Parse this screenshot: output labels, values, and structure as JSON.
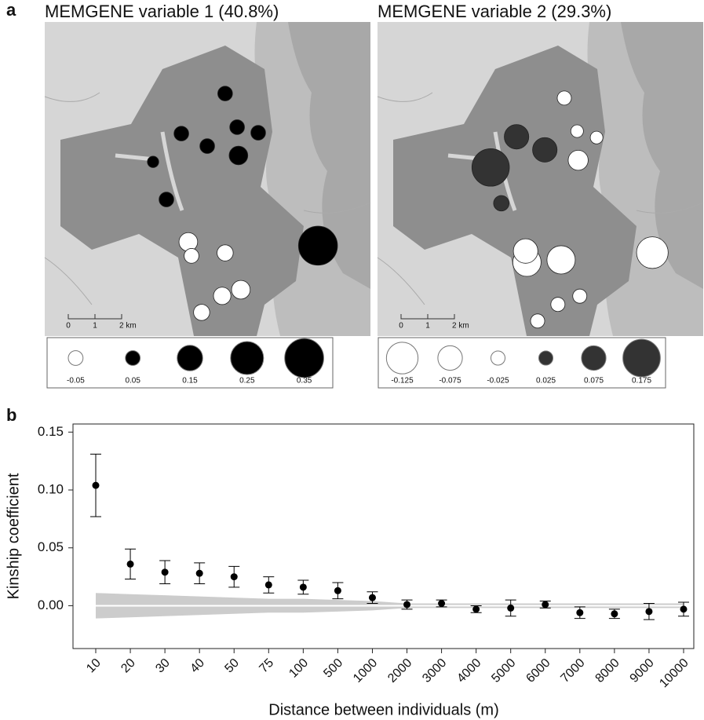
{
  "panel_labels": [
    "a",
    "b"
  ],
  "maps": [
    {
      "title": "MEMGENE variable 1 (40.8%)",
      "scale_labels": [
        "0",
        "1",
        "2 km"
      ],
      "positive_color": "#000000",
      "negative_color": "#ffffff",
      "legend": [
        -0.05,
        0.05,
        0.15,
        0.25,
        0.35
      ],
      "points": [
        {
          "x": 6.76,
          "y": 2.68,
          "value": 0.05
        },
        {
          "x": 5.12,
          "y": 4.18,
          "value": 0.05
        },
        {
          "x": 7.21,
          "y": 3.94,
          "value": 0.05
        },
        {
          "x": 8.0,
          "y": 4.15,
          "value": 0.05
        },
        {
          "x": 6.09,
          "y": 4.65,
          "value": 0.05
        },
        {
          "x": 7.26,
          "y": 5.0,
          "value": 0.08
        },
        {
          "x": 4.06,
          "y": 5.24,
          "value": 0.03
        },
        {
          "x": 4.56,
          "y": 6.65,
          "value": 0.05
        },
        {
          "x": 10.24,
          "y": 8.38,
          "value": 0.35
        },
        {
          "x": 5.38,
          "y": 8.24,
          "value": -0.08
        },
        {
          "x": 5.5,
          "y": 8.76,
          "value": -0.05
        },
        {
          "x": 6.76,
          "y": 8.65,
          "value": -0.06
        },
        {
          "x": 7.35,
          "y": 10.03,
          "value": -0.08
        },
        {
          "x": 6.65,
          "y": 10.26,
          "value": -0.07
        },
        {
          "x": 5.88,
          "y": 10.88,
          "value": -0.06
        }
      ]
    },
    {
      "title": "MEMGENE variable 2 (29.3%)",
      "scale_labels": [
        "0",
        "1",
        "2 km"
      ],
      "positive_color": "#333333",
      "negative_color": "#ffffff",
      "legend": [
        -0.125,
        -0.075,
        -0.025,
        0.025,
        0.075,
        0.175
      ],
      "points": [
        {
          "x": 4.24,
          "y": 5.45,
          "value": 0.175
        },
        {
          "x": 5.21,
          "y": 4.3,
          "value": 0.075
        },
        {
          "x": 6.27,
          "y": 4.79,
          "value": 0.075
        },
        {
          "x": 4.64,
          "y": 6.79,
          "value": 0.03
        },
        {
          "x": 7.0,
          "y": 2.85,
          "value": -0.025
        },
        {
          "x": 7.48,
          "y": 4.09,
          "value": -0.02
        },
        {
          "x": 8.21,
          "y": 4.33,
          "value": -0.02
        },
        {
          "x": 7.52,
          "y": 5.18,
          "value": -0.05
        },
        {
          "x": 10.3,
          "y": 8.64,
          "value": -0.125
        },
        {
          "x": 5.6,
          "y": 9.0,
          "value": -0.1
        },
        {
          "x": 6.88,
          "y": 8.91,
          "value": -0.1
        },
        {
          "x": 5.55,
          "y": 8.58,
          "value": -0.075
        },
        {
          "x": 7.58,
          "y": 10.27,
          "value": -0.025
        },
        {
          "x": 6.76,
          "y": 10.58,
          "value": -0.025
        },
        {
          "x": 6.0,
          "y": 11.2,
          "value": -0.025
        }
      ]
    }
  ],
  "chart_data": {
    "type": "errorbar",
    "x_label": "Distance between individuals (m)",
    "y_label": "Kinship coefficient",
    "categories": [
      "10",
      "20",
      "30",
      "40",
      "50",
      "75",
      "100",
      "500",
      "1000",
      "2000",
      "3000",
      "4000",
      "5000",
      "6000",
      "7000",
      "8000",
      "9000",
      "10000"
    ],
    "values": [
      0.104,
      0.036,
      0.029,
      0.028,
      0.025,
      0.018,
      0.016,
      0.013,
      0.007,
      0.001,
      0.002,
      -0.003,
      -0.002,
      0.001,
      -0.006,
      -0.007,
      -0.005,
      -0.003
    ],
    "errors": [
      0.027,
      0.013,
      0.01,
      0.009,
      0.009,
      0.007,
      0.006,
      0.007,
      0.005,
      0.004,
      0.003,
      0.003,
      0.007,
      0.003,
      0.005,
      0.004,
      0.007,
      0.006
    ],
    "envelope_upper": [
      0.011,
      0.01,
      0.009,
      0.008,
      0.007,
      0.006,
      0.006,
      0.005,
      0.004,
      0.002,
      0.002,
      0.002,
      0.002,
      0.002,
      0.002,
      0.002,
      0.002,
      0.002
    ],
    "envelope_lower": [
      -0.011,
      -0.01,
      -0.009,
      -0.008,
      -0.007,
      -0.006,
      -0.006,
      -0.005,
      -0.004,
      -0.002,
      -0.002,
      -0.002,
      -0.002,
      -0.002,
      -0.002,
      -0.002,
      -0.002,
      -0.002
    ],
    "color": "#000000",
    "envelope_color": "#cccccc",
    "ylim": [
      -0.037,
      0.157
    ],
    "yticks": [
      {
        "value": 0,
        "label": "0.00"
      },
      0.05,
      {
        "value": 0.1,
        "label": "0.10"
      },
      0.15
    ]
  }
}
